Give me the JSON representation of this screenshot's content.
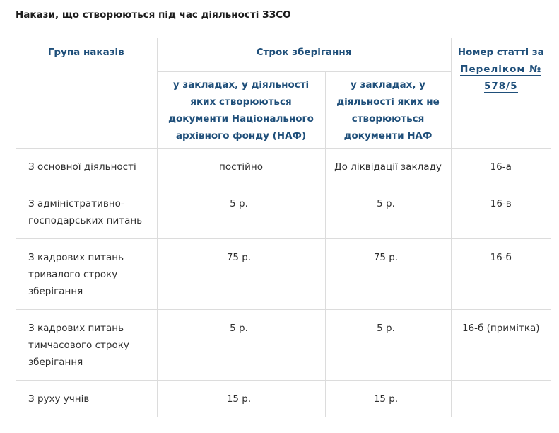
{
  "page": {
    "title": "Накази, що створюються під час діяльності ЗЗСО"
  },
  "table": {
    "headers": {
      "group": "Група наказів",
      "storage": "Строк зберігання",
      "naf": "у закладах, у діяльності яких створюються документи Національного архівного фонду (НАФ)",
      "non_naf": "у закладах, у діяльності яких не створюються документи НАФ",
      "article_prefix": "Номер статті за",
      "article_link": "Переліком № 578/5"
    },
    "rows": [
      {
        "group": "З основної діяльності",
        "naf": "постійно",
        "non_naf": "До ліквідації закладу",
        "article": "16-а"
      },
      {
        "group": "З адміністративно-господарських питань",
        "naf": "5 р.",
        "non_naf": "5 р.",
        "article": "16-в"
      },
      {
        "group": "З кадрових питань тривалого строку зберігання",
        "naf": "75 р.",
        "non_naf": "75 р.",
        "article": "16-б"
      },
      {
        "group": "З кадрових питань тимчасового строку зберігання",
        "naf": "5 р.",
        "non_naf": "5 р.",
        "article": "16-б (примітка)"
      },
      {
        "group": "З руху учнів",
        "naf": "15 р.",
        "non_naf": "15 р.",
        "article": ""
      }
    ]
  }
}
